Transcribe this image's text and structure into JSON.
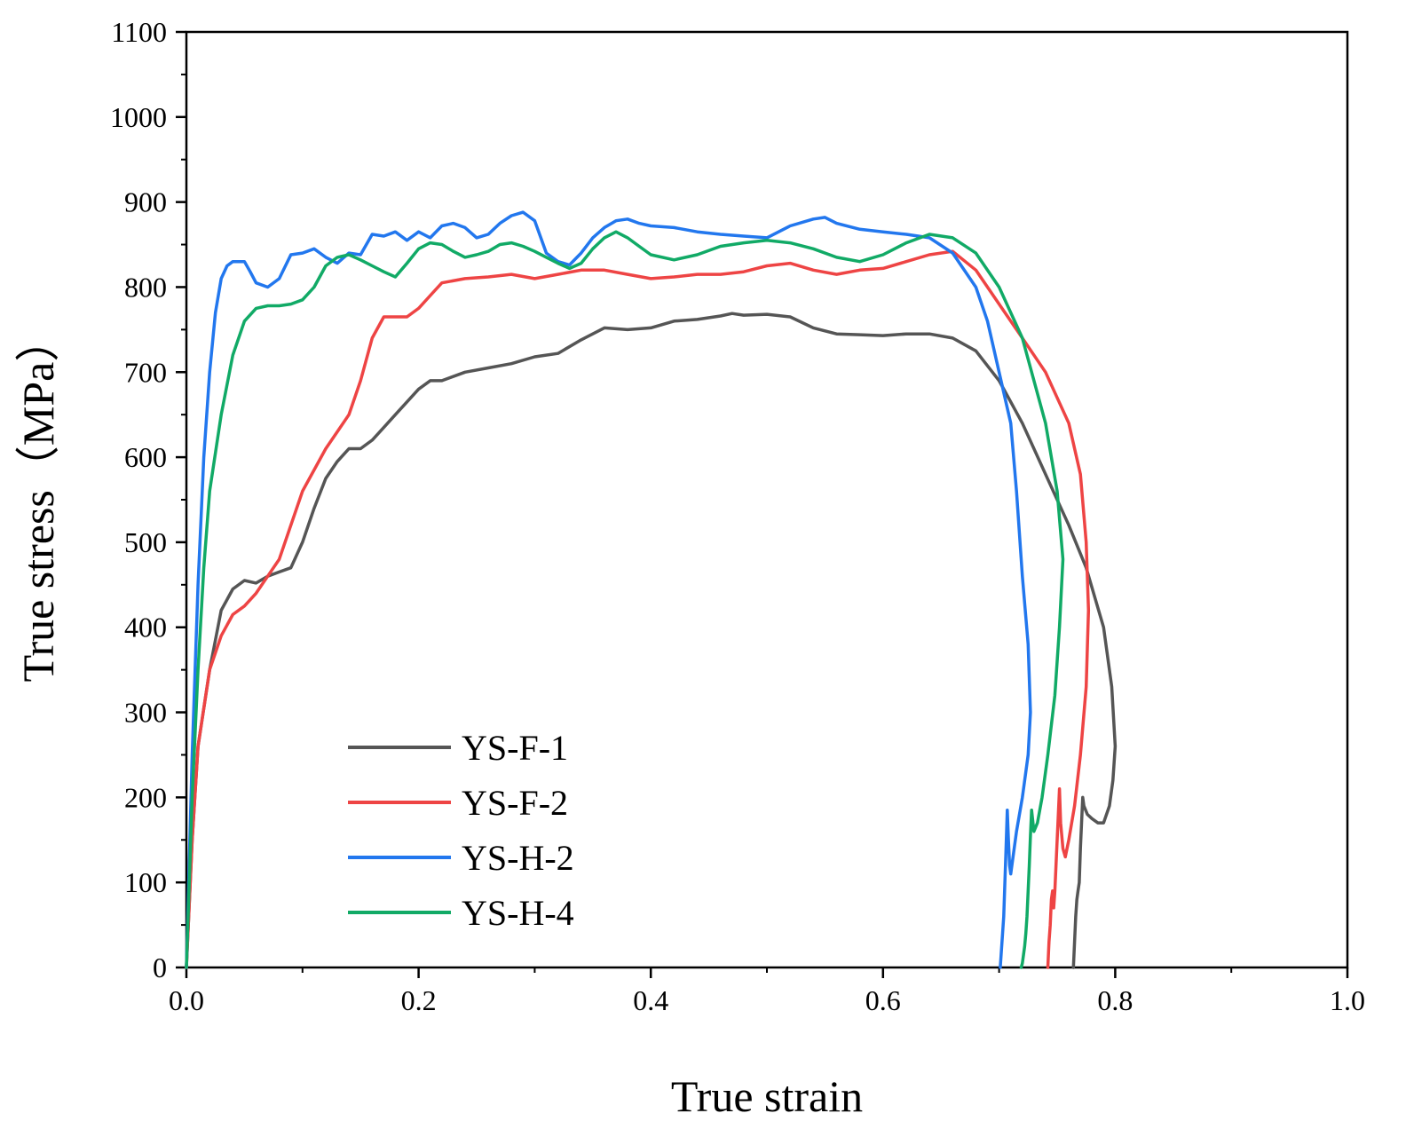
{
  "chart_data": {
    "type": "line",
    "title": "",
    "xlabel": "True strain",
    "ylabel": "True stress（MPa）",
    "xlim": [
      0.0,
      1.0
    ],
    "ylim": [
      0,
      1100
    ],
    "xticks": [
      "0.0",
      "0.2",
      "0.4",
      "0.6",
      "0.8",
      "1.0"
    ],
    "yticks": [
      "0",
      "100",
      "200",
      "300",
      "400",
      "500",
      "600",
      "700",
      "800",
      "900",
      "1000",
      "1100"
    ],
    "grid": false,
    "legend_position": "lower-left",
    "series": [
      {
        "name": "YS-F-1",
        "color": "#555555",
        "x": [
          0.0,
          0.005,
          0.01,
          0.02,
          0.03,
          0.04,
          0.05,
          0.06,
          0.07,
          0.08,
          0.09,
          0.1,
          0.11,
          0.12,
          0.13,
          0.14,
          0.15,
          0.16,
          0.17,
          0.18,
          0.19,
          0.2,
          0.21,
          0.22,
          0.24,
          0.26,
          0.28,
          0.3,
          0.32,
          0.34,
          0.36,
          0.38,
          0.4,
          0.42,
          0.44,
          0.46,
          0.47,
          0.48,
          0.5,
          0.52,
          0.54,
          0.56,
          0.58,
          0.6,
          0.62,
          0.64,
          0.66,
          0.68,
          0.7,
          0.72,
          0.74,
          0.76,
          0.775,
          0.79,
          0.797,
          0.8,
          0.798,
          0.795,
          0.79,
          0.785,
          0.78,
          0.776,
          0.773,
          0.772,
          0.771,
          0.77,
          0.769,
          0.768,
          0.767,
          0.766,
          0.765,
          0.764
        ],
        "y": [
          0,
          150,
          260,
          350,
          420,
          445,
          455,
          452,
          460,
          465,
          470,
          500,
          540,
          575,
          595,
          610,
          610,
          620,
          635,
          650,
          665,
          680,
          690,
          690,
          700,
          705,
          710,
          718,
          722,
          738,
          752,
          750,
          752,
          760,
          762,
          766,
          769,
          767,
          768,
          765,
          752,
          745,
          744,
          743,
          745,
          745,
          740,
          725,
          690,
          640,
          580,
          520,
          470,
          400,
          330,
          260,
          220,
          190,
          170,
          170,
          175,
          180,
          190,
          200,
          170,
          140,
          100,
          90,
          80,
          60,
          30,
          0
        ]
      },
      {
        "name": "YS-F-2",
        "color": "#ee4444",
        "x": [
          0.0,
          0.005,
          0.01,
          0.02,
          0.03,
          0.04,
          0.05,
          0.06,
          0.07,
          0.08,
          0.09,
          0.1,
          0.12,
          0.14,
          0.15,
          0.16,
          0.17,
          0.18,
          0.19,
          0.2,
          0.21,
          0.22,
          0.24,
          0.26,
          0.28,
          0.3,
          0.32,
          0.34,
          0.36,
          0.38,
          0.4,
          0.42,
          0.44,
          0.46,
          0.48,
          0.5,
          0.52,
          0.54,
          0.56,
          0.58,
          0.6,
          0.62,
          0.64,
          0.66,
          0.68,
          0.7,
          0.72,
          0.74,
          0.76,
          0.77,
          0.775,
          0.777,
          0.775,
          0.77,
          0.765,
          0.76,
          0.757,
          0.755,
          0.753,
          0.752,
          0.751,
          0.75,
          0.749,
          0.748,
          0.747,
          0.746,
          0.745,
          0.744,
          0.743,
          0.742
        ],
        "y": [
          0,
          150,
          260,
          350,
          390,
          415,
          425,
          440,
          460,
          480,
          520,
          560,
          610,
          650,
          690,
          740,
          765,
          765,
          765,
          775,
          790,
          805,
          810,
          812,
          815,
          810,
          815,
          820,
          820,
          815,
          810,
          812,
          815,
          815,
          818,
          825,
          828,
          820,
          815,
          820,
          822,
          830,
          838,
          842,
          820,
          780,
          740,
          700,
          640,
          580,
          500,
          420,
          330,
          250,
          190,
          150,
          130,
          140,
          170,
          210,
          180,
          150,
          120,
          90,
          70,
          90,
          80,
          50,
          30,
          0
        ]
      },
      {
        "name": "YS-H-2",
        "color": "#2277ee",
        "x": [
          0.0,
          0.005,
          0.01,
          0.015,
          0.02,
          0.025,
          0.03,
          0.035,
          0.04,
          0.05,
          0.055,
          0.06,
          0.07,
          0.08,
          0.09,
          0.1,
          0.11,
          0.12,
          0.13,
          0.14,
          0.15,
          0.16,
          0.17,
          0.18,
          0.19,
          0.2,
          0.21,
          0.22,
          0.23,
          0.24,
          0.25,
          0.26,
          0.27,
          0.28,
          0.29,
          0.3,
          0.31,
          0.32,
          0.33,
          0.34,
          0.35,
          0.36,
          0.37,
          0.38,
          0.39,
          0.4,
          0.42,
          0.44,
          0.46,
          0.48,
          0.5,
          0.52,
          0.54,
          0.55,
          0.56,
          0.58,
          0.6,
          0.62,
          0.64,
          0.66,
          0.68,
          0.69,
          0.7,
          0.71,
          0.715,
          0.72,
          0.725,
          0.727,
          0.725,
          0.72,
          0.715,
          0.712,
          0.71,
          0.709,
          0.708,
          0.707,
          0.706,
          0.705,
          0.704,
          0.703,
          0.702,
          0.701
        ],
        "y": [
          0,
          250,
          450,
          600,
          700,
          770,
          810,
          825,
          830,
          830,
          818,
          805,
          800,
          810,
          838,
          840,
          845,
          835,
          828,
          840,
          838,
          862,
          860,
          865,
          855,
          865,
          858,
          872,
          875,
          870,
          858,
          862,
          875,
          884,
          888,
          878,
          840,
          830,
          826,
          840,
          858,
          870,
          878,
          880,
          875,
          872,
          870,
          865,
          862,
          860,
          858,
          872,
          880,
          882,
          875,
          868,
          865,
          862,
          858,
          840,
          800,
          760,
          700,
          640,
          560,
          460,
          380,
          300,
          250,
          200,
          160,
          130,
          110,
          120,
          150,
          185,
          140,
          100,
          60,
          40,
          20,
          0
        ]
      },
      {
        "name": "YS-H-4",
        "color": "#11aa66",
        "x": [
          0.0,
          0.005,
          0.01,
          0.015,
          0.02,
          0.03,
          0.04,
          0.05,
          0.06,
          0.07,
          0.08,
          0.09,
          0.1,
          0.11,
          0.12,
          0.13,
          0.14,
          0.15,
          0.16,
          0.17,
          0.18,
          0.19,
          0.2,
          0.21,
          0.22,
          0.23,
          0.24,
          0.25,
          0.26,
          0.27,
          0.28,
          0.29,
          0.3,
          0.31,
          0.32,
          0.33,
          0.34,
          0.35,
          0.36,
          0.37,
          0.38,
          0.39,
          0.4,
          0.42,
          0.44,
          0.46,
          0.48,
          0.5,
          0.52,
          0.54,
          0.56,
          0.58,
          0.6,
          0.62,
          0.64,
          0.66,
          0.68,
          0.7,
          0.72,
          0.74,
          0.75,
          0.755,
          0.752,
          0.748,
          0.742,
          0.737,
          0.733,
          0.73,
          0.728,
          0.727,
          0.726,
          0.725,
          0.724,
          0.723,
          0.722,
          0.721,
          0.72,
          0.719
        ],
        "y": [
          0,
          200,
          350,
          470,
          560,
          650,
          720,
          760,
          775,
          778,
          778,
          780,
          785,
          800,
          825,
          835,
          838,
          832,
          825,
          818,
          812,
          828,
          845,
          852,
          850,
          842,
          835,
          838,
          842,
          850,
          852,
          848,
          842,
          835,
          828,
          822,
          828,
          845,
          858,
          865,
          858,
          848,
          838,
          832,
          838,
          848,
          852,
          855,
          852,
          845,
          835,
          830,
          838,
          852,
          862,
          858,
          840,
          800,
          740,
          640,
          560,
          480,
          400,
          320,
          250,
          200,
          170,
          160,
          185,
          155,
          120,
          90,
          60,
          40,
          25,
          15,
          5,
          0
        ]
      }
    ]
  }
}
